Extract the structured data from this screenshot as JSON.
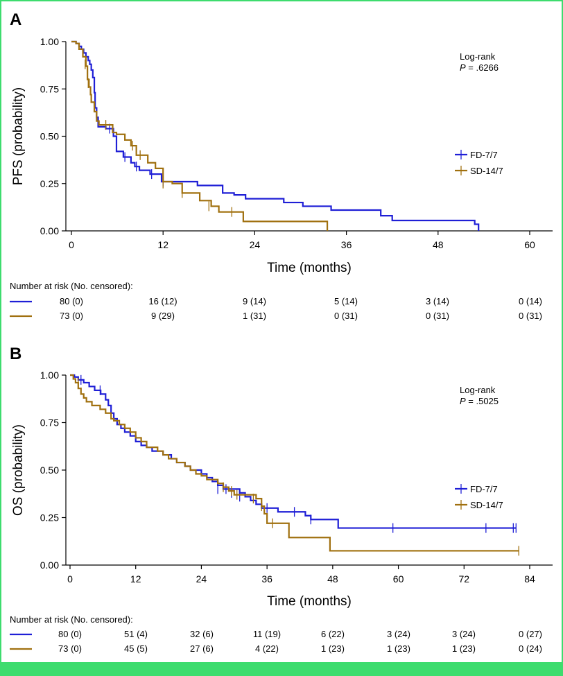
{
  "colors": {
    "series1": "#1f1fd6",
    "series2": "#a0700f",
    "frame": "#3ddc6e"
  },
  "chart_data": [
    {
      "panel": "A",
      "type": "line",
      "ylabel": "PFS (probability)",
      "xlabel": "Time (months)",
      "xlim": [
        0,
        63
      ],
      "ylim": [
        0,
        1
      ],
      "xticks": [
        "0",
        "12",
        "24",
        "36",
        "48",
        "60"
      ],
      "xtick_values": [
        0,
        12,
        24,
        36,
        48,
        60
      ],
      "yticks": [
        "0.00",
        "0.25",
        "0.50",
        "0.75",
        "1.00"
      ],
      "ytick_values": [
        0,
        0.25,
        0.5,
        0.75,
        1
      ],
      "annotation": {
        "line1": "Log-rank",
        "p_label": "P",
        "p_value": " = .6266"
      },
      "series": [
        {
          "name": "FD-7/7",
          "color": "#1f1fd6",
          "steps": [
            [
              0,
              1.0
            ],
            [
              0.5,
              1.0
            ],
            [
              0.6,
              0.99
            ],
            [
              1.0,
              0.975
            ],
            [
              1.3,
              0.96
            ],
            [
              1.6,
              0.94
            ],
            [
              1.9,
              0.92
            ],
            [
              2.2,
              0.9
            ],
            [
              2.4,
              0.88
            ],
            [
              2.6,
              0.85
            ],
            [
              2.8,
              0.81
            ],
            [
              3.0,
              0.73
            ],
            [
              3.1,
              0.65
            ],
            [
              3.3,
              0.6
            ],
            [
              3.5,
              0.55
            ],
            [
              4.5,
              0.54
            ],
            [
              5.5,
              0.5
            ],
            [
              5.9,
              0.42
            ],
            [
              6.8,
              0.39
            ],
            [
              7.8,
              0.36
            ],
            [
              8.3,
              0.34
            ],
            [
              8.9,
              0.32
            ],
            [
              10.3,
              0.3
            ],
            [
              11.8,
              0.26
            ],
            [
              16.5,
              0.24
            ],
            [
              19.8,
              0.2
            ],
            [
              21.3,
              0.19
            ],
            [
              22.8,
              0.17
            ],
            [
              27.8,
              0.15
            ],
            [
              30.3,
              0.13
            ],
            [
              34.0,
              0.11
            ],
            [
              40.5,
              0.08
            ],
            [
              42.0,
              0.055
            ],
            [
              52.8,
              0.035
            ],
            [
              53.3,
              0.0
            ]
          ],
          "censor": [
            [
              5.0,
              0.54
            ],
            [
              7.0,
              0.39
            ],
            [
              8.5,
              0.34
            ],
            [
              10.5,
              0.3
            ],
            [
              12.0,
              0.26
            ]
          ]
        },
        {
          "name": "SD-14/7",
          "color": "#a0700f",
          "steps": [
            [
              0,
              1.0
            ],
            [
              0.6,
              0.99
            ],
            [
              1.0,
              0.96
            ],
            [
              1.5,
              0.92
            ],
            [
              1.9,
              0.87
            ],
            [
              2.1,
              0.8
            ],
            [
              2.3,
              0.76
            ],
            [
              2.5,
              0.72
            ],
            [
              2.6,
              0.68
            ],
            [
              3.0,
              0.63
            ],
            [
              3.3,
              0.58
            ],
            [
              3.6,
              0.56
            ],
            [
              5.4,
              0.52
            ],
            [
              5.9,
              0.51
            ],
            [
              7.0,
              0.48
            ],
            [
              7.8,
              0.45
            ],
            [
              8.5,
              0.4
            ],
            [
              10.0,
              0.36
            ],
            [
              11.0,
              0.33
            ],
            [
              12.0,
              0.26
            ],
            [
              13.2,
              0.25
            ],
            [
              14.5,
              0.2
            ],
            [
              16.8,
              0.16
            ],
            [
              18.3,
              0.13
            ],
            [
              19.3,
              0.1
            ],
            [
              22.5,
              0.05
            ],
            [
              33.5,
              0.0
            ]
          ],
          "censor": [
            [
              1.8,
              0.88
            ],
            [
              2.2,
              0.78
            ],
            [
              4.5,
              0.56
            ],
            [
              8.0,
              0.45
            ],
            [
              9.0,
              0.4
            ],
            [
              12.0,
              0.25
            ],
            [
              14.5,
              0.2
            ],
            [
              18.0,
              0.13
            ],
            [
              21.0,
              0.1
            ]
          ]
        }
      ],
      "risk_table": {
        "title": "Number at risk (No. censored):",
        "rows": [
          {
            "color": "#1f1fd6",
            "values": [
              "80 (0)",
              "16 (12)",
              "9 (14)",
              "5 (14)",
              "3 (14)",
              "0 (14)"
            ]
          },
          {
            "color": "#a0700f",
            "values": [
              "73 (0)",
              "9 (29)",
              "1 (31)",
              "0 (31)",
              "0 (31)",
              "0 (31)"
            ]
          }
        ]
      }
    },
    {
      "panel": "B",
      "type": "line",
      "ylabel": "OS (probability)",
      "xlabel": "Time (months)",
      "xlim": [
        0,
        88
      ],
      "ylim": [
        0,
        1
      ],
      "xticks": [
        "0",
        "12",
        "24",
        "36",
        "48",
        "60",
        "72",
        "84"
      ],
      "xtick_values": [
        0,
        12,
        24,
        36,
        48,
        60,
        72,
        84
      ],
      "yticks": [
        "0.00",
        "0.25",
        "0.50",
        "0.75",
        "1.00"
      ],
      "ytick_values": [
        0,
        0.25,
        0.5,
        0.75,
        1
      ],
      "annotation": {
        "line1": "Log-rank",
        "p_label": "P",
        "p_value": " = .5025"
      },
      "series": [
        {
          "name": "FD-7/7",
          "color": "#1f1fd6",
          "steps": [
            [
              0,
              1.0
            ],
            [
              0.8,
              0.99
            ],
            [
              1.5,
              0.975
            ],
            [
              2.5,
              0.96
            ],
            [
              3.5,
              0.94
            ],
            [
              4.5,
              0.92
            ],
            [
              5.6,
              0.9
            ],
            [
              6.5,
              0.87
            ],
            [
              7.0,
              0.84
            ],
            [
              7.5,
              0.8
            ],
            [
              8.0,
              0.77
            ],
            [
              8.6,
              0.74
            ],
            [
              9.3,
              0.72
            ],
            [
              10.0,
              0.7
            ],
            [
              11.0,
              0.68
            ],
            [
              12.0,
              0.65
            ],
            [
              13.0,
              0.63
            ],
            [
              14.0,
              0.62
            ],
            [
              15.0,
              0.6
            ],
            [
              17.0,
              0.58
            ],
            [
              18.5,
              0.56
            ],
            [
              19.5,
              0.54
            ],
            [
              21.0,
              0.52
            ],
            [
              22.0,
              0.5
            ],
            [
              24.0,
              0.48
            ],
            [
              25.0,
              0.46
            ],
            [
              26.0,
              0.44
            ],
            [
              27.0,
              0.42
            ],
            [
              28.0,
              0.4
            ],
            [
              31.0,
              0.38
            ],
            [
              32.0,
              0.36
            ],
            [
              33.0,
              0.34
            ],
            [
              34.0,
              0.32
            ],
            [
              35.0,
              0.3
            ],
            [
              38.0,
              0.28
            ],
            [
              43.0,
              0.26
            ],
            [
              44.0,
              0.24
            ],
            [
              49.0,
              0.195
            ],
            [
              81.5,
              0.195
            ]
          ],
          "censor": [
            [
              2.0,
              0.975
            ],
            [
              5.5,
              0.92
            ],
            [
              27.0,
              0.4
            ],
            [
              28.5,
              0.4
            ],
            [
              29.5,
              0.38
            ],
            [
              31.0,
              0.36
            ],
            [
              36.0,
              0.3
            ],
            [
              41.0,
              0.28
            ],
            [
              44.0,
              0.24
            ],
            [
              59.0,
              0.195
            ],
            [
              76.0,
              0.195
            ],
            [
              81.0,
              0.195
            ],
            [
              81.5,
              0.195
            ]
          ]
        },
        {
          "name": "SD-14/7",
          "color": "#a0700f",
          "steps": [
            [
              0,
              1.0
            ],
            [
              0.6,
              0.98
            ],
            [
              1.0,
              0.96
            ],
            [
              1.5,
              0.93
            ],
            [
              2.0,
              0.9
            ],
            [
              2.5,
              0.88
            ],
            [
              3.0,
              0.86
            ],
            [
              4.0,
              0.84
            ],
            [
              5.5,
              0.82
            ],
            [
              6.5,
              0.8
            ],
            [
              7.5,
              0.77
            ],
            [
              8.0,
              0.76
            ],
            [
              9.0,
              0.74
            ],
            [
              10.0,
              0.72
            ],
            [
              11.0,
              0.7
            ],
            [
              12.0,
              0.67
            ],
            [
              13.0,
              0.65
            ],
            [
              14.0,
              0.62
            ],
            [
              16.0,
              0.6
            ],
            [
              17.0,
              0.58
            ],
            [
              18.0,
              0.56
            ],
            [
              19.5,
              0.54
            ],
            [
              21.0,
              0.52
            ],
            [
              22.0,
              0.5
            ],
            [
              23.0,
              0.48
            ],
            [
              24.0,
              0.47
            ],
            [
              25.0,
              0.45
            ],
            [
              27.0,
              0.43
            ],
            [
              28.0,
              0.41
            ],
            [
              29.0,
              0.39
            ],
            [
              30.0,
              0.37
            ],
            [
              34.0,
              0.35
            ],
            [
              35.0,
              0.31
            ],
            [
              35.5,
              0.27
            ],
            [
              36.0,
              0.22
            ],
            [
              40.0,
              0.145
            ],
            [
              47.5,
              0.075
            ],
            [
              82.0,
              0.075
            ]
          ],
          "censor": [
            [
              1.5,
              0.96
            ],
            [
              28.0,
              0.41
            ],
            [
              29.5,
              0.39
            ],
            [
              30.5,
              0.37
            ],
            [
              33.5,
              0.35
            ],
            [
              35.0,
              0.31
            ],
            [
              37.0,
              0.22
            ],
            [
              82.0,
              0.075
            ]
          ]
        }
      ],
      "risk_table": {
        "title": "Number at risk (No. censored):",
        "rows": [
          {
            "color": "#1f1fd6",
            "values": [
              "80 (0)",
              "51 (4)",
              "32 (6)",
              "11 (19)",
              "6 (22)",
              "3 (24)",
              "3 (24)",
              "0 (27)"
            ]
          },
          {
            "color": "#a0700f",
            "values": [
              "73 (0)",
              "45 (5)",
              "27 (6)",
              "4 (22)",
              "1 (23)",
              "1 (23)",
              "1 (23)",
              "0 (24)"
            ]
          }
        ]
      }
    }
  ]
}
